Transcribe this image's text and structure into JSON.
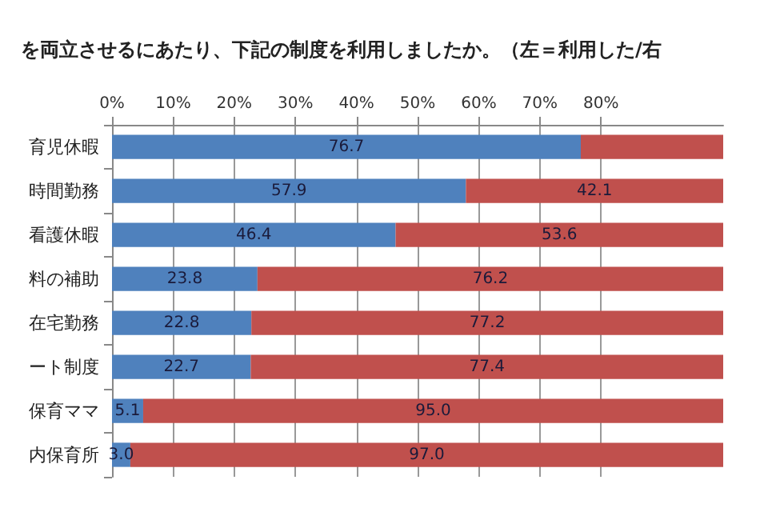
{
  "chart_data": {
    "type": "bar",
    "orientation": "horizontal",
    "stacked": true,
    "title": "を両立させるにあたり、下記の制度を利用しましたか。（左＝利用した/右",
    "categories": [
      "育児休暇",
      "時間勤務",
      "看護休暇",
      "料の補助",
      "在宅勤務",
      "ート制度",
      "保育ママ",
      "内保育所"
    ],
    "series": [
      {
        "color": "#4f81bd",
        "values": [
          76.7,
          57.9,
          46.4,
          23.8,
          22.8,
          22.7,
          5.1,
          3.0
        ],
        "value_labels": [
          "76.7",
          "57.9",
          "46.4",
          "23.8",
          "22.8",
          "22.7",
          "5.1",
          "3.0"
        ]
      },
      {
        "color": "#c0504d",
        "values": [
          23.3,
          42.1,
          53.6,
          76.2,
          77.2,
          77.4,
          95.0,
          97.0
        ],
        "value_labels": [
          null,
          "42.1",
          "53.6",
          "76.2",
          "77.2",
          "77.4",
          "95.0",
          "97.0"
        ]
      }
    ],
    "xlim": [
      0,
      100
    ],
    "xticks": [
      {
        "value": 0,
        "label": "0%"
      },
      {
        "value": 10,
        "label": "10%"
      },
      {
        "value": 20,
        "label": "20%"
      },
      {
        "value": 30,
        "label": "30%"
      },
      {
        "value": 40,
        "label": "40%"
      },
      {
        "value": 50,
        "label": "50%"
      },
      {
        "value": 60,
        "label": "60%"
      },
      {
        "value": 70,
        "label": "70%"
      },
      {
        "value": 80,
        "label": "80%"
      }
    ],
    "grid": "x"
  }
}
